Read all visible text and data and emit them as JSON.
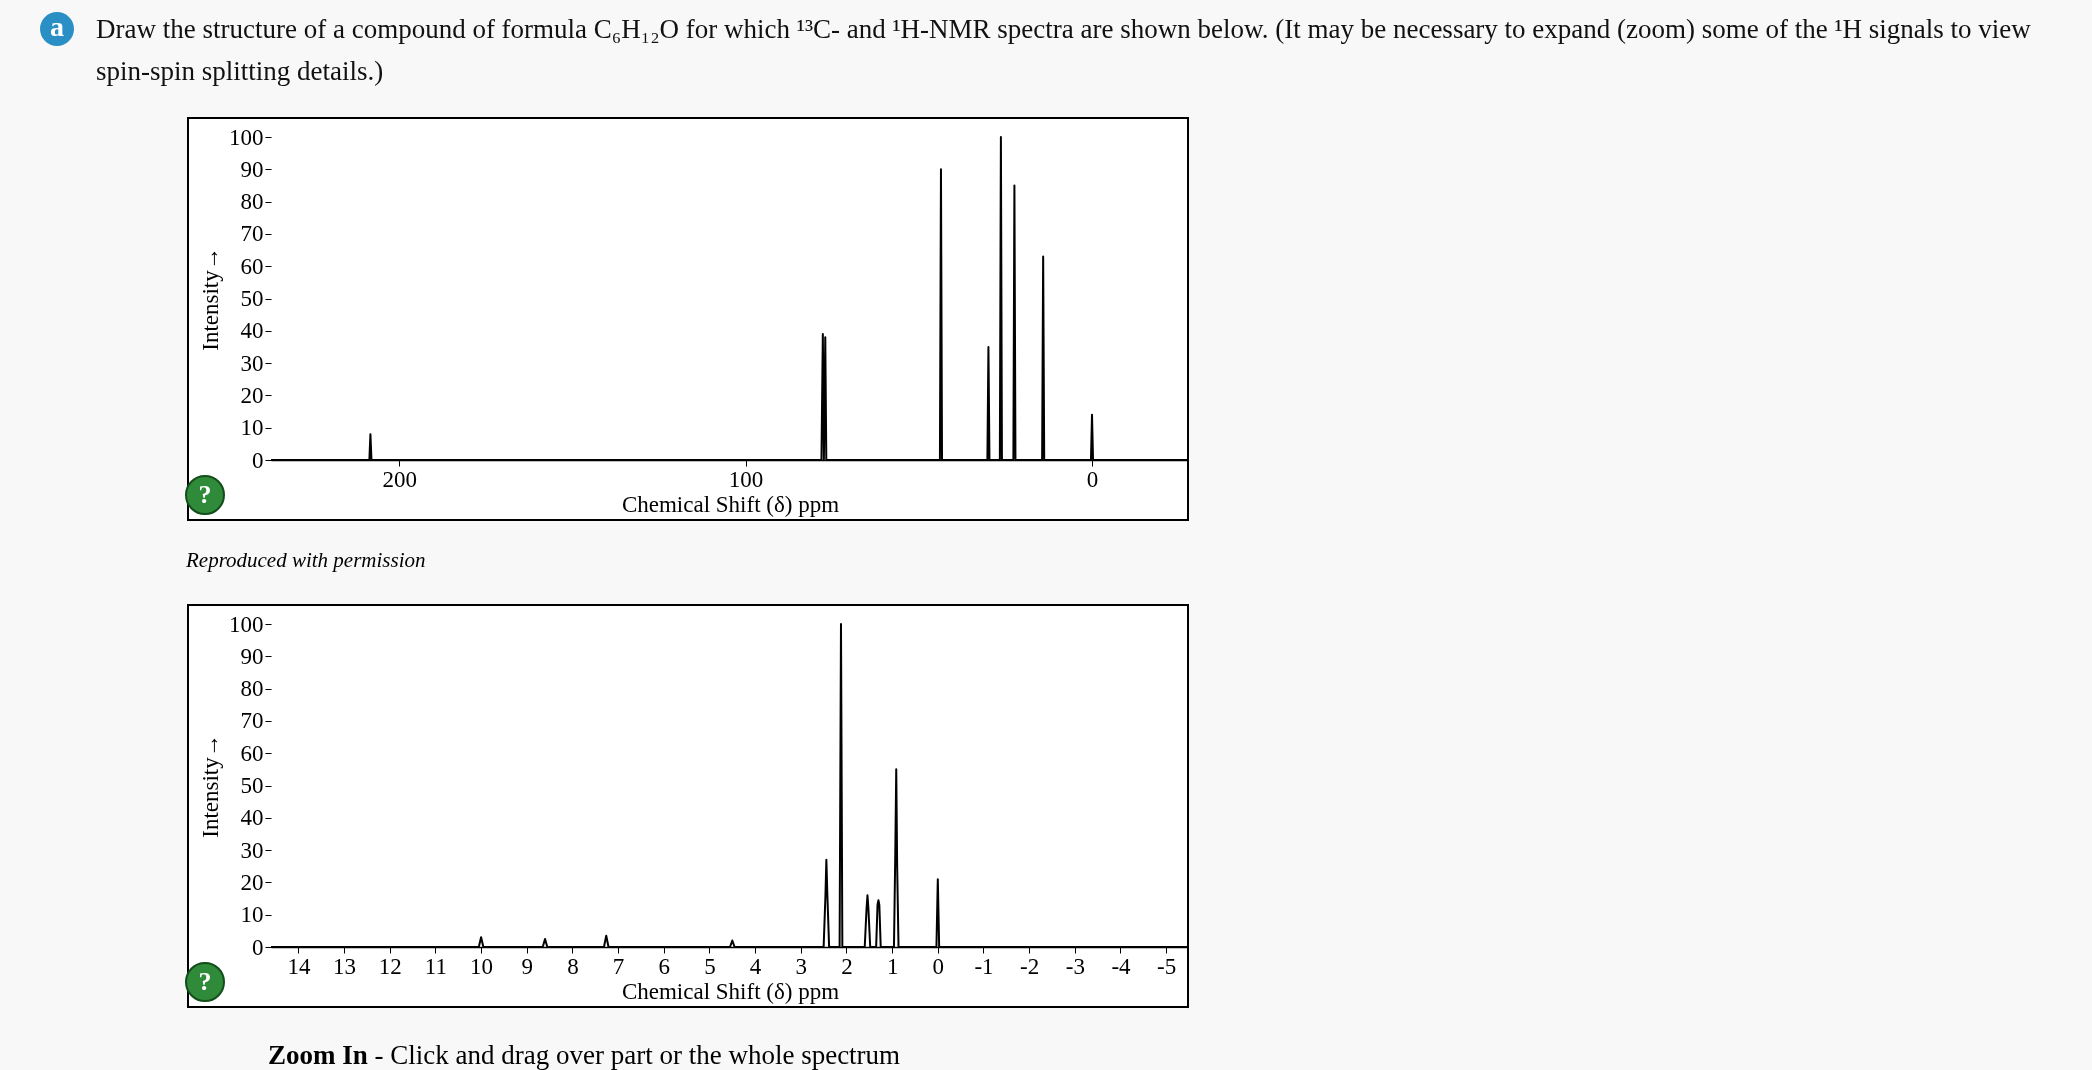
{
  "chart_data": [
    {
      "type": "line",
      "title": "Draw the structure of a compound of formula C₆H₁₂O for which ¹³C- and ¹H-NMR spectra are shown below. (It may be necessary to expand (zoom) some of the ¹H signals to view spin-spin splitting details.)",
      "xlabel": "Chemical Shift (δ) ppm",
      "ylabel": "Intensity→",
      "annotations": [
        "a",
        "Reproduced with permission",
        "?"
      ],
      "series": [
        {
          "color": "#000000",
          "x": [
            237,
            208.6,
            208.3,
            208.0,
            78.1,
            77.7,
            77.4,
            77.0,
            76.7,
            43.9,
            43.6,
            43.3,
            30.2,
            29.9,
            29.6,
            26.6,
            26.3,
            26.0,
            22.7,
            22.4,
            22.1,
            14.4,
            14.1,
            13.8,
            0.3,
            0,
            -0.3,
            -28
          ],
          "values": [
            0,
            0,
            8,
            0,
            0,
            39,
            0,
            38,
            0,
            0,
            90,
            0,
            0,
            35,
            0,
            0,
            100,
            0,
            0,
            85,
            0,
            0,
            63,
            0,
            0,
            14,
            0,
            0
          ]
        }
      ],
      "xlim": [
        237,
        -28
      ],
      "xticks": [
        200,
        100,
        0
      ],
      "ylim": [
        0,
        100
      ],
      "yticks": [
        0,
        10,
        20,
        30,
        40,
        50,
        60,
        70,
        80,
        90,
        100
      ]
    },
    {
      "type": "line",
      "xlabel": "Chemical Shift (δ) ppm",
      "ylabel": "Intensity→",
      "annotations": [
        "Zoom In - Click and drag over part or the whole spectrum",
        "?"
      ],
      "series": [
        {
          "color": "#000000",
          "x": [
            14.6,
            10.05,
            10.0,
            9.95,
            8.65,
            8.6,
            8.55,
            7.31,
            7.26,
            7.21,
            4.55,
            4.5,
            4.45,
            2.5,
            2.46,
            2.44,
            2.42,
            2.38,
            2.15,
            2.12,
            2.09,
            1.6,
            1.56,
            1.54,
            1.52,
            1.48,
            1.35,
            1.32,
            1.3,
            1.28,
            1.25,
            0.96,
            0.93,
            0.91,
            0.89,
            0.86,
            0.03,
            0,
            -0.03,
            -5.5
          ],
          "values": [
            0,
            0,
            3,
            0,
            0,
            2.5,
            0,
            0,
            3.5,
            0,
            0,
            2,
            0,
            0,
            16,
            27,
            17,
            0,
            0,
            100,
            0,
            0,
            12,
            16,
            12,
            0,
            0,
            13,
            14.5,
            13,
            0,
            0,
            30,
            55,
            25,
            0,
            0,
            21,
            0,
            0
          ]
        }
      ],
      "xlim": [
        14.6,
        -5.5
      ],
      "xticks": [
        14,
        13,
        12,
        11,
        10,
        9,
        8,
        7,
        6,
        5,
        4,
        3,
        2,
        1,
        0,
        -1,
        -2,
        -3,
        -4,
        -5
      ],
      "ylim": [
        0,
        100
      ],
      "yticks": [
        0,
        10,
        20,
        30,
        40,
        50,
        60,
        70,
        80,
        90,
        100
      ]
    }
  ]
}
